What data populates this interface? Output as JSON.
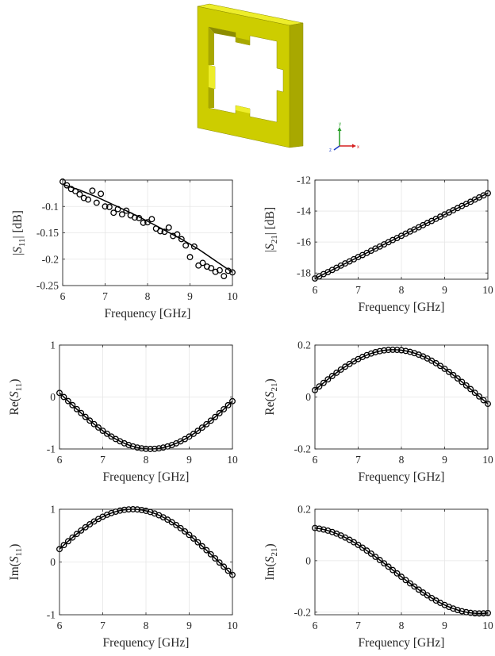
{
  "model": {
    "triad": {
      "y_label": "y",
      "x_label": "x",
      "z_label": "z"
    },
    "colors": {
      "front": "#cdcd00",
      "top": "#eded2a",
      "side": "#a8a800",
      "inner_shadow": "#8c8c00",
      "x_axis": "#d62020",
      "y_axis": "#2aa02a",
      "z_axis": "#1f3fc8"
    }
  },
  "colors": {
    "marker": "#000000",
    "fit_line": "#000000",
    "grid": "#e6e6e6",
    "axis": "#262626"
  },
  "chart_data": [
    {
      "id": "s11-mag",
      "type": "line",
      "xlabel": "Frequency [GHz]",
      "ylabel_pre": "|",
      "ylabel_var": "S",
      "ylabel_sub": "11",
      "ylabel_post": "| [dB]",
      "xlim": [
        6,
        10
      ],
      "ylim": [
        -0.25,
        -0.05
      ],
      "xticks": [
        6,
        7,
        8,
        9,
        10
      ],
      "yticks": [
        -0.1,
        -0.15,
        -0.2,
        -0.25
      ],
      "ytick_labels": [
        "-0.1",
        "-0.15",
        "-0.2",
        "-0.25"
      ],
      "grid": true,
      "marker": "circle",
      "series": [
        {
          "role": "fit",
          "style": "line",
          "x": [
            6.0,
            6.4,
            6.8,
            7.2,
            7.6,
            8.0,
            8.4,
            8.8,
            9.2,
            9.6,
            10.0
          ],
          "y": [
            -0.058,
            -0.069,
            -0.082,
            -0.097,
            -0.112,
            -0.128,
            -0.145,
            -0.162,
            -0.181,
            -0.203,
            -0.225
          ]
        },
        {
          "role": "simulated",
          "style": "markers",
          "x": [
            6.0,
            6.1,
            6.2,
            6.3,
            6.4,
            6.5,
            6.6,
            6.7,
            6.8,
            6.9,
            7.0,
            7.1,
            7.2,
            7.3,
            7.4,
            7.5,
            7.6,
            7.7,
            7.8,
            7.9,
            8.0,
            8.1,
            8.2,
            8.3,
            8.4,
            8.5,
            8.6,
            8.7,
            8.8,
            8.9,
            9.0,
            9.1,
            9.2,
            9.3,
            9.4,
            9.5,
            9.6,
            9.7,
            9.8,
            9.9,
            10.0
          ],
          "y": [
            -0.053,
            -0.06,
            -0.067,
            -0.071,
            -0.077,
            -0.084,
            -0.087,
            -0.07,
            -0.093,
            -0.076,
            -0.1,
            -0.101,
            -0.112,
            -0.105,
            -0.115,
            -0.108,
            -0.117,
            -0.121,
            -0.122,
            -0.131,
            -0.13,
            -0.124,
            -0.142,
            -0.147,
            -0.148,
            -0.14,
            -0.156,
            -0.153,
            -0.162,
            -0.174,
            -0.196,
            -0.176,
            -0.212,
            -0.207,
            -0.214,
            -0.217,
            -0.224,
            -0.221,
            -0.232,
            -0.222,
            -0.225
          ]
        }
      ]
    },
    {
      "id": "s21-mag",
      "type": "line",
      "xlabel": "Frequency [GHz]",
      "ylabel_pre": "|",
      "ylabel_var": "S",
      "ylabel_sub": "21",
      "ylabel_post": "| [dB]",
      "xlim": [
        6,
        10
      ],
      "ylim": [
        -18.4,
        -12
      ],
      "xticks": [
        6,
        7,
        8,
        9,
        10
      ],
      "yticks": [
        -12,
        -14,
        -16,
        -18
      ],
      "ytick_labels": [
        "-12",
        "-14",
        "-16",
        "-18"
      ],
      "grid": true,
      "marker": "circle",
      "series": [
        {
          "role": "fit",
          "style": "line",
          "x": [
            6.0,
            10.0
          ],
          "y": [
            -18.35,
            -12.85
          ]
        },
        {
          "role": "simulated",
          "style": "markers",
          "x": [
            6.0,
            6.1,
            6.2,
            6.3,
            6.4,
            6.5,
            6.6,
            6.7,
            6.8,
            6.9,
            7.0,
            7.1,
            7.2,
            7.3,
            7.4,
            7.5,
            7.6,
            7.7,
            7.8,
            7.9,
            8.0,
            8.1,
            8.2,
            8.3,
            8.4,
            8.5,
            8.6,
            8.7,
            8.8,
            8.9,
            9.0,
            9.1,
            9.2,
            9.3,
            9.4,
            9.5,
            9.6,
            9.7,
            9.8,
            9.9,
            10.0
          ],
          "y": [
            -18.35,
            -18.21,
            -18.07,
            -17.94,
            -17.8,
            -17.66,
            -17.52,
            -17.38,
            -17.25,
            -17.11,
            -16.97,
            -16.84,
            -16.7,
            -16.56,
            -16.42,
            -16.29,
            -16.15,
            -16.01,
            -15.87,
            -15.74,
            -15.6,
            -15.46,
            -15.32,
            -15.19,
            -15.05,
            -14.91,
            -14.77,
            -14.64,
            -14.5,
            -14.36,
            -14.22,
            -14.09,
            -13.95,
            -13.81,
            -13.67,
            -13.54,
            -13.4,
            -13.26,
            -13.12,
            -12.99,
            -12.85
          ]
        }
      ]
    },
    {
      "id": "s11-re",
      "type": "line",
      "xlabel": "Frequency [GHz]",
      "ylabel_pre": "Re(",
      "ylabel_var": "S",
      "ylabel_sub": "11",
      "ylabel_post": ")",
      "xlim": [
        6,
        10
      ],
      "ylim": [
        -1,
        1
      ],
      "xticks": [
        6,
        7,
        8,
        9,
        10
      ],
      "yticks": [
        -1,
        0,
        1
      ],
      "ytick_labels": [
        "-1",
        "0",
        "1"
      ],
      "grid": true,
      "marker": "circle",
      "series": [
        {
          "role": "fit",
          "style": "line",
          "fn": "sin",
          "amp": 1.0,
          "freq": 0.785,
          "phase": -1.647
        },
        {
          "role": "simulated",
          "style": "markers",
          "fn": "sin",
          "amp": 1.0,
          "freq": 0.785,
          "phase": -1.647,
          "x_from": 6,
          "x_to": 10,
          "count": 41
        }
      ]
    },
    {
      "id": "s21-re",
      "type": "line",
      "xlabel": "Frequency [GHz]",
      "ylabel_pre": "Re(",
      "ylabel_var": "S",
      "ylabel_sub": "21",
      "ylabel_post": ")",
      "xlim": [
        6,
        10
      ],
      "ylim": [
        -0.2,
        0.2
      ],
      "xticks": [
        6,
        7,
        8,
        9,
        10
      ],
      "yticks": [
        -0.2,
        0,
        0.2
      ],
      "ytick_labels": [
        "-0.2",
        "0",
        "0.2"
      ],
      "grid": true,
      "marker": "circle",
      "series": [
        {
          "role": "fit",
          "style": "line",
          "fn": "sin",
          "amp": 0.182,
          "freq": 0.785,
          "phase": -4.563
        },
        {
          "role": "simulated",
          "style": "markers",
          "fn": "sin",
          "amp": 0.182,
          "freq": 0.785,
          "phase": -4.563,
          "x_from": 6,
          "x_to": 10,
          "count": 41
        }
      ]
    },
    {
      "id": "s11-im",
      "type": "line",
      "xlabel": "Frequency [GHz]",
      "ylabel_pre": "Im(",
      "ylabel_var": "S",
      "ylabel_sub": "11",
      "ylabel_post": ")",
      "xlim": [
        6,
        10
      ],
      "ylim": [
        -1,
        1
      ],
      "xticks": [
        6,
        7,
        8,
        9,
        10
      ],
      "yticks": [
        -1,
        0,
        1
      ],
      "ytick_labels": [
        "-1",
        "0",
        "1"
      ],
      "grid": true,
      "marker": "circle",
      "series": [
        {
          "role": "fit",
          "style": "line",
          "fn": "sin",
          "amp": 1.0,
          "freq": 0.785,
          "phase": -4.463
        },
        {
          "role": "simulated",
          "style": "markers",
          "fn": "sin",
          "amp": 1.0,
          "freq": 0.785,
          "phase": -4.463,
          "x_from": 6,
          "x_to": 10,
          "count": 41
        }
      ]
    },
    {
      "id": "s21-im",
      "type": "line",
      "xlabel": "Frequency [GHz]",
      "ylabel_pre": "Im(",
      "ylabel_var": "S",
      "ylabel_sub": "21",
      "ylabel_post": ")",
      "xlim": [
        6,
        10
      ],
      "ylim": [
        -0.21,
        0.2
      ],
      "xticks": [
        6,
        7,
        8,
        9,
        10
      ],
      "yticks": [
        -0.2,
        0,
        0.2
      ],
      "ytick_labels": [
        "-0.2",
        "0",
        "0.2"
      ],
      "grid": true,
      "marker": "circle",
      "series": [
        {
          "role": "fit",
          "style": "line",
          "fn": "sin",
          "amp": 0.167,
          "freq": 0.785,
          "phase": -2.992,
          "offset": -0.038
        },
        {
          "role": "simulated",
          "style": "markers",
          "fn": "sin",
          "amp": 0.167,
          "freq": 0.785,
          "phase": -2.992,
          "offset": -0.038,
          "x_from": 6,
          "x_to": 10,
          "count": 41
        }
      ]
    }
  ]
}
